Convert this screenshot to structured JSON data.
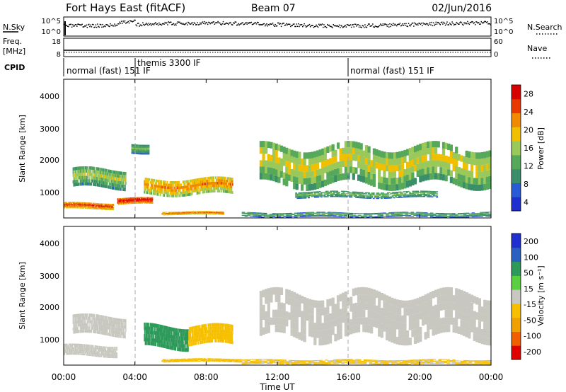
{
  "header": {
    "station": "Fort Hays East (fitACF)",
    "beam": "Beam 07",
    "date": "02/Jun/2016"
  },
  "noise_panel": {
    "left_label": "N.Sky",
    "right_label": "N.Search",
    "ticks_left": [
      "10^5",
      "10^0"
    ],
    "ticks_right": [
      "10^5",
      "10^0"
    ]
  },
  "freq_panel": {
    "left_label_1": "Freq.",
    "left_label_2": "[MHz]",
    "right_label": "Nave",
    "ticks_left": [
      "18",
      "8"
    ],
    "ticks_right": [
      "60",
      "0"
    ]
  },
  "cpid_panel": {
    "label": "CPID",
    "segments": [
      {
        "name": "normal (fast) 151 IF",
        "start_h": 0,
        "end_h": 4
      },
      {
        "name": "themis 3300 IF",
        "start_h": 4,
        "end_h": 16
      },
      {
        "name": "normal (fast) 151 IF",
        "start_h": 16,
        "end_h": 24
      }
    ]
  },
  "power_panel": {
    "ylabel": "Slant Range [km]",
    "yticks": [
      "4000",
      "3000",
      "2000",
      "1000"
    ],
    "colorbar_label": "Power [dB]",
    "colorbar_ticks": [
      "28",
      "24",
      "20",
      "16",
      "12",
      "8",
      "4"
    ]
  },
  "velocity_panel": {
    "ylabel": "Slant Range [km]",
    "yticks": [
      "4000",
      "3000",
      "2000",
      "1000"
    ],
    "colorbar_label": "Velocity [m s⁻¹]",
    "colorbar_ticks": [
      "200",
      "100",
      "50",
      "15",
      "-15",
      "-50",
      "-100",
      "-200"
    ]
  },
  "xaxis": {
    "title": "Time UT",
    "ticks": [
      "00:00",
      "04:00",
      "08:00",
      "12:00",
      "16:00",
      "20:00",
      "00:00"
    ]
  },
  "chart_data": [
    {
      "type": "heatmap",
      "title": "Power [dB]",
      "x_range_hours": [
        0,
        24
      ],
      "y_range_km": [
        180,
        4500
      ],
      "xlabel": "Time UT",
      "ylabel": "Slant Range [km]",
      "colorbar_range": [
        0,
        30
      ],
      "colors": [
        "#1f2fd0",
        "#2a5bd6",
        "#3a8f6a",
        "#56a85b",
        "#9ac85a",
        "#f0c000",
        "#f08a00",
        "#e83a00",
        "#d60000"
      ],
      "echo_bands": [
        {
          "start_h": 0.5,
          "end_h": 3.5,
          "range_km": [
            1100,
            1700
          ],
          "power_db": 12
        },
        {
          "start_h": 0.0,
          "end_h": 2.8,
          "range_km": [
            450,
            650
          ],
          "power_db": 22
        },
        {
          "start_h": 3.0,
          "end_h": 5.0,
          "range_km": [
            600,
            800
          ],
          "power_db": 24
        },
        {
          "start_h": 4.5,
          "end_h": 9.5,
          "range_km": [
            900,
            1400
          ],
          "power_db": 18
        },
        {
          "start_h": 5.5,
          "end_h": 9.0,
          "range_km": [
            280,
            380
          ],
          "power_db": 20
        },
        {
          "start_h": 3.8,
          "end_h": 4.8,
          "range_km": [
            2200,
            2500
          ],
          "power_db": 10
        },
        {
          "start_h": 11.0,
          "end_h": 24.0,
          "range_km": [
            1200,
            2400
          ],
          "power_db": 14
        },
        {
          "start_h": 13.0,
          "end_h": 21.0,
          "range_km": [
            800,
            1000
          ],
          "power_db": 10
        },
        {
          "start_h": 10.0,
          "end_h": 24.0,
          "range_km": [
            200,
            350
          ],
          "power_db": 8
        }
      ],
      "vertical_markers_h": [
        4,
        16
      ]
    },
    {
      "type": "heatmap",
      "title": "Velocity [m s⁻¹]",
      "x_range_hours": [
        0,
        24
      ],
      "y_range_km": [
        180,
        4500
      ],
      "xlabel": "Time UT",
      "ylabel": "Slant Range [km]",
      "colorbar_range": [
        -250,
        250
      ],
      "colors": [
        "#e00000",
        "#f06000",
        "#f0a000",
        "#f6c000",
        "#c8c8c0",
        "#c8c8c0",
        "#5ad040",
        "#2e9a5a",
        "#2a60c0",
        "#1f2fd0"
      ],
      "echo_bands": [
        {
          "start_h": 0.5,
          "end_h": 3.5,
          "range_km": [
            1100,
            1700
          ],
          "velocity": 0
        },
        {
          "start_h": 0.0,
          "end_h": 3.0,
          "range_km": [
            450,
            800
          ],
          "velocity": 0
        },
        {
          "start_h": 4.5,
          "end_h": 7.0,
          "range_km": [
            700,
            1400
          ],
          "velocity": 60
        },
        {
          "start_h": 7.0,
          "end_h": 9.5,
          "range_km": [
            800,
            1400
          ],
          "velocity": -40
        },
        {
          "start_h": 5.5,
          "end_h": 10.0,
          "range_km": [
            280,
            380
          ],
          "velocity": -30
        },
        {
          "start_h": 11.0,
          "end_h": 24.0,
          "range_km": [
            1000,
            2400
          ],
          "velocity": 0
        },
        {
          "start_h": 10.0,
          "end_h": 24.0,
          "range_km": [
            200,
            350
          ],
          "velocity": -20
        }
      ],
      "vertical_markers_h": [
        4,
        16
      ]
    }
  ]
}
